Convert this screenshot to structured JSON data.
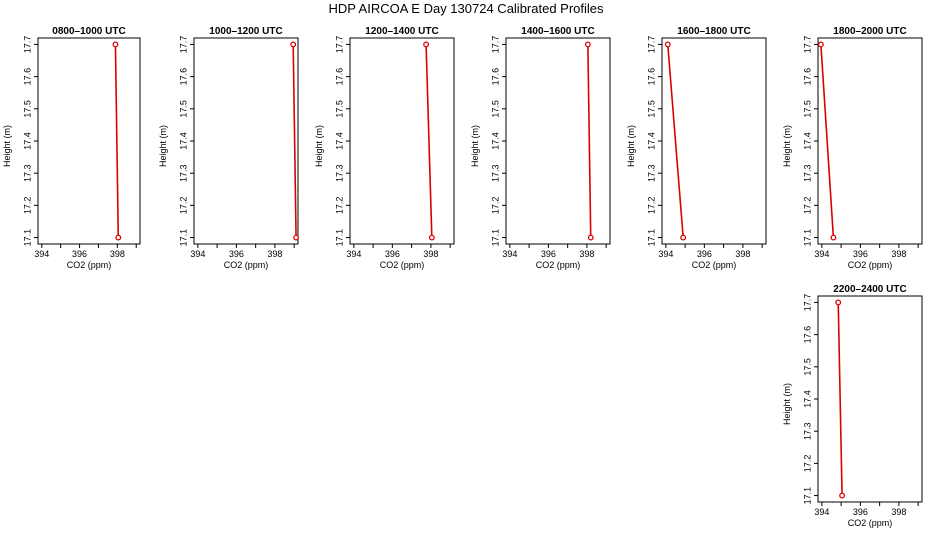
{
  "figure_title": "HDP AIRCOA E  Day 130724  Calibrated Profiles",
  "styles": {
    "line_color": "#dd0000",
    "point_color": "#dd0000",
    "axis_color": "#000000"
  },
  "chart_data": [
    {
      "type": "line",
      "title": "0800–1000 UTC",
      "xlabel": "CO2 (ppm)",
      "ylabel": "Height (m)",
      "xlim": [
        393.8,
        399.2
      ],
      "ylim": [
        17.08,
        17.72
      ],
      "xticks": [
        "394",
        "396",
        "398"
      ],
      "yticks": [
        "17.1",
        "17.2",
        "17.3",
        "17.4",
        "17.5",
        "17.6",
        "17.7"
      ],
      "series": [
        {
          "x": [
            397.9,
            398.05
          ],
          "y": [
            17.7,
            17.1
          ]
        }
      ]
    },
    {
      "type": "line",
      "title": "1000–1200 UTC",
      "xlabel": "CO2 (ppm)",
      "ylabel": "Height (m)",
      "xlim": [
        393.8,
        399.2
      ],
      "ylim": [
        17.08,
        17.72
      ],
      "xticks": [
        "394",
        "396",
        "398"
      ],
      "yticks": [
        "17.1",
        "17.2",
        "17.3",
        "17.4",
        "17.5",
        "17.6",
        "17.7"
      ],
      "series": [
        {
          "x": [
            398.95,
            399.1
          ],
          "y": [
            17.7,
            17.1
          ]
        }
      ]
    },
    {
      "type": "line",
      "title": "1200–1400 UTC",
      "xlabel": "CO2 (ppm)",
      "ylabel": "Height (m)",
      "xlim": [
        393.8,
        399.2
      ],
      "ylim": [
        17.08,
        17.72
      ],
      "xticks": [
        "394",
        "396",
        "398"
      ],
      "yticks": [
        "17.1",
        "17.2",
        "17.3",
        "17.4",
        "17.5",
        "17.6",
        "17.7"
      ],
      "series": [
        {
          "x": [
            397.75,
            398.05
          ],
          "y": [
            17.7,
            17.1
          ]
        }
      ]
    },
    {
      "type": "line",
      "title": "1400–1600 UTC",
      "xlabel": "CO2 (ppm)",
      "ylabel": "Height (m)",
      "xlim": [
        393.8,
        399.2
      ],
      "ylim": [
        17.08,
        17.72
      ],
      "xticks": [
        "394",
        "396",
        "398"
      ],
      "yticks": [
        "17.1",
        "17.2",
        "17.3",
        "17.4",
        "17.5",
        "17.6",
        "17.7"
      ],
      "series": [
        {
          "x": [
            398.05,
            398.2
          ],
          "y": [
            17.7,
            17.1
          ]
        }
      ]
    },
    {
      "type": "line",
      "title": "1600–1800 UTC",
      "xlabel": "CO2 (ppm)",
      "ylabel": "Height (m)",
      "xlim": [
        393.8,
        399.2
      ],
      "ylim": [
        17.08,
        17.72
      ],
      "xticks": [
        "394",
        "396",
        "398"
      ],
      "yticks": [
        "17.1",
        "17.2",
        "17.3",
        "17.4",
        "17.5",
        "17.6",
        "17.7"
      ],
      "series": [
        {
          "x": [
            394.1,
            394.9
          ],
          "y": [
            17.7,
            17.1
          ]
        }
      ]
    },
    {
      "type": "line",
      "title": "1800–2000 UTC",
      "xlabel": "CO2 (ppm)",
      "ylabel": "Height (m)",
      "xlim": [
        393.8,
        399.2
      ],
      "ylim": [
        17.08,
        17.72
      ],
      "xticks": [
        "394",
        "396",
        "398"
      ],
      "yticks": [
        "17.1",
        "17.2",
        "17.3",
        "17.4",
        "17.5",
        "17.6",
        "17.7"
      ],
      "series": [
        {
          "x": [
            393.95,
            394.6
          ],
          "y": [
            17.7,
            17.1
          ]
        }
      ]
    },
    {
      "type": "line",
      "title": "2200–2400 UTC",
      "xlabel": "CO2 (ppm)",
      "ylabel": "Height (m)",
      "xlim": [
        393.8,
        399.2
      ],
      "ylim": [
        17.08,
        17.72
      ],
      "xticks": [
        "394",
        "396",
        "398"
      ],
      "yticks": [
        "17.1",
        "17.2",
        "17.3",
        "17.4",
        "17.5",
        "17.6",
        "17.7"
      ],
      "series": [
        {
          "x": [
            394.85,
            395.05
          ],
          "y": [
            17.7,
            17.1
          ]
        }
      ]
    }
  ]
}
